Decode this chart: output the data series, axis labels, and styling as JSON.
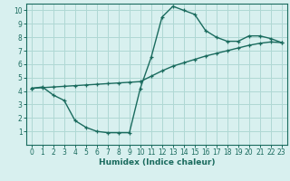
{
  "xlabel": "Humidex (Indice chaleur)",
  "curve1_x": [
    0,
    1,
    2,
    3,
    4,
    5,
    6,
    7,
    8,
    9,
    10,
    11,
    12,
    13,
    14,
    15,
    16,
    17,
    18,
    19,
    20,
    21,
    22,
    23
  ],
  "curve1_y": [
    4.2,
    4.3,
    3.7,
    3.3,
    1.8,
    1.3,
    1.0,
    0.9,
    0.9,
    0.9,
    4.2,
    6.5,
    9.5,
    10.3,
    10.0,
    9.7,
    8.5,
    8.0,
    7.7,
    7.7,
    8.1,
    8.1,
    7.9,
    7.6
  ],
  "curve2_x": [
    0,
    1,
    2,
    3,
    4,
    5,
    6,
    7,
    8,
    9,
    10,
    11,
    12,
    13,
    14,
    15,
    16,
    17,
    18,
    19,
    20,
    21,
    22,
    23
  ],
  "curve2_y": [
    4.2,
    4.25,
    4.3,
    4.35,
    4.4,
    4.45,
    4.5,
    4.55,
    4.6,
    4.65,
    4.7,
    5.1,
    5.5,
    5.85,
    6.1,
    6.35,
    6.6,
    6.8,
    7.0,
    7.2,
    7.4,
    7.55,
    7.65,
    7.6
  ],
  "line_color": "#1a6b5e",
  "bg_color": "#d8f0ef",
  "grid_color": "#afd8d4",
  "xlim_min": -0.5,
  "xlim_max": 23.5,
  "ylim_min": 0,
  "ylim_max": 10.5,
  "xtick_vals": [
    0,
    1,
    2,
    3,
    4,
    5,
    6,
    7,
    8,
    9,
    10,
    11,
    12,
    13,
    14,
    15,
    16,
    17,
    18,
    19,
    20,
    21,
    22,
    23
  ],
  "xtick_labels": [
    "0",
    "1",
    "2",
    "3",
    "4",
    "5",
    "6",
    "7",
    "8",
    "9",
    "10",
    "11",
    "12",
    "13",
    "14",
    "15",
    "16",
    "17",
    "18",
    "19",
    "20",
    "21",
    "22",
    "23"
  ],
  "ytick_vals": [
    1,
    2,
    3,
    4,
    5,
    6,
    7,
    8,
    9,
    10
  ],
  "ytick_labels": [
    "1",
    "2",
    "3",
    "4",
    "5",
    "6",
    "7",
    "8",
    "9",
    "10"
  ],
  "xlabel_fontsize": 6.5,
  "tick_fontsize": 5.5,
  "marker_size": 3.5,
  "linewidth": 1.0
}
